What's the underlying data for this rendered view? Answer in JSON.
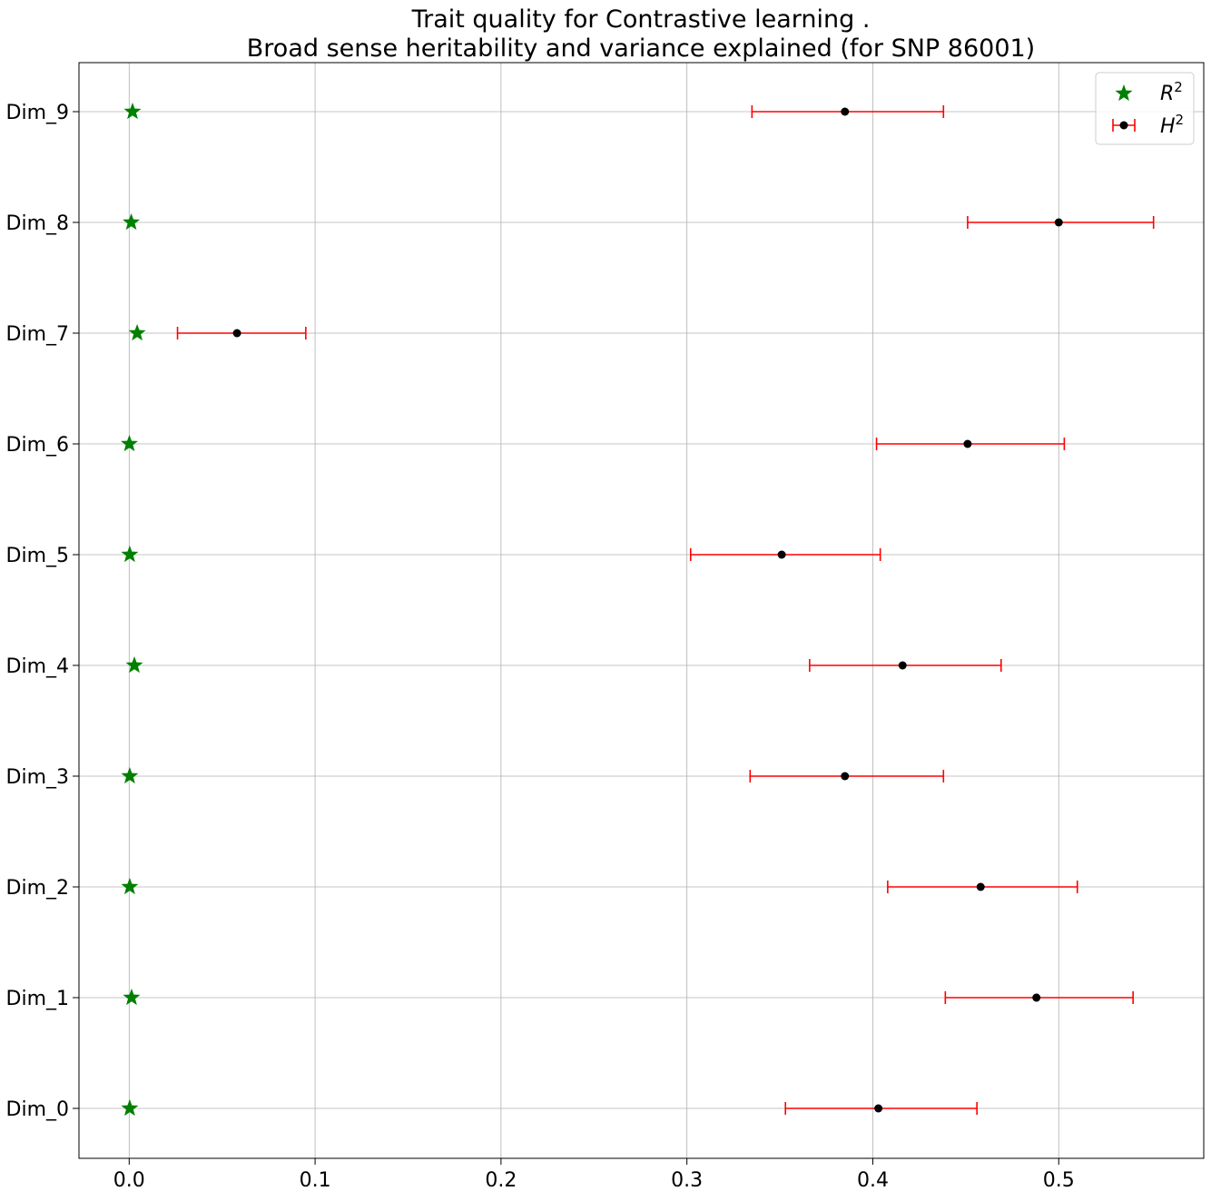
{
  "chart_data": {
    "type": "scatter",
    "title": "Trait quality for Contrastive learning .",
    "subtitle": "Broad sense heritability and variance explained (for SNP 86001)",
    "xlabel": "",
    "ylabel": "",
    "xlim": [
      -0.027,
      0.578
    ],
    "x_ticks": [
      "0.0",
      "0.1",
      "0.2",
      "0.3",
      "0.4",
      "0.5"
    ],
    "x_tick_values": [
      0.0,
      0.1,
      0.2,
      0.3,
      0.4,
      0.5
    ],
    "categories": [
      "Dim_0",
      "Dim_1",
      "Dim_2",
      "Dim_3",
      "Dim_4",
      "Dim_5",
      "Dim_6",
      "Dim_7",
      "Dim_8",
      "Dim_9"
    ],
    "grid": true,
    "legend_position": "top-right",
    "series": [
      {
        "name": "R2",
        "marker": "star",
        "color": "#008000",
        "values": [
          0.0003,
          0.0013,
          0.0003,
          0.0003,
          0.0028,
          0.0003,
          0.0001,
          0.0043,
          0.0011,
          0.0018
        ]
      },
      {
        "name": "H2",
        "marker": "circle",
        "color": "#000000",
        "error_color": "#ff0000",
        "values": [
          0.403,
          0.488,
          0.458,
          0.385,
          0.416,
          0.351,
          0.451,
          0.058,
          0.5,
          0.385
        ],
        "error_low": [
          0.353,
          0.439,
          0.408,
          0.334,
          0.366,
          0.302,
          0.402,
          0.026,
          0.451,
          0.335
        ],
        "error_high": [
          0.456,
          0.54,
          0.51,
          0.438,
          0.469,
          0.404,
          0.503,
          0.095,
          0.551,
          0.438
        ]
      }
    ],
    "legend": {
      "r2_label": "R",
      "h2_label": "H",
      "superscript": "2"
    }
  }
}
